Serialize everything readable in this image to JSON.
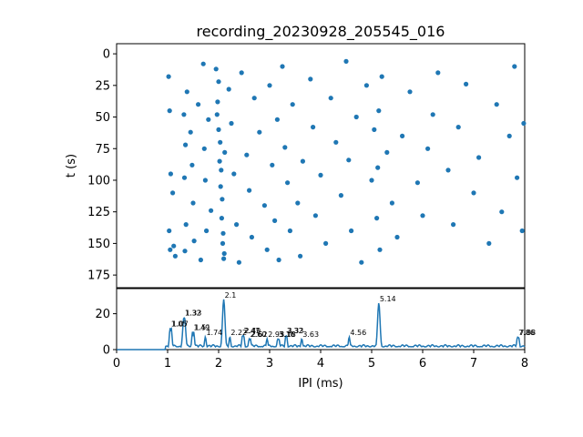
{
  "chart_data": [
    {
      "type": "scatter",
      "title": "recording_20230928_205545_016",
      "xlabel": "",
      "ylabel": "t (s)",
      "xlim": [
        0,
        8
      ],
      "ylim": [
        185,
        -8
      ],
      "y_inverted": true,
      "yticks": [
        0,
        25,
        50,
        75,
        100,
        125,
        150,
        175
      ],
      "grid": false,
      "color": "#1f77b4",
      "marker": "circle",
      "points": [
        [
          1.02,
          18
        ],
        [
          1.04,
          45
        ],
        [
          1.06,
          95
        ],
        [
          1.03,
          140
        ],
        [
          1.05,
          155
        ],
        [
          1.1,
          110
        ],
        [
          1.12,
          152
        ],
        [
          1.15,
          160
        ],
        [
          1.32,
          48
        ],
        [
          1.35,
          72
        ],
        [
          1.33,
          98
        ],
        [
          1.36,
          135
        ],
        [
          1.34,
          156
        ],
        [
          1.38,
          30
        ],
        [
          1.45,
          62
        ],
        [
          1.48,
          88
        ],
        [
          1.5,
          118
        ],
        [
          1.52,
          148
        ],
        [
          1.6,
          40
        ],
        [
          1.65,
          163
        ],
        [
          1.7,
          8
        ],
        [
          1.72,
          75
        ],
        [
          1.74,
          100
        ],
        [
          1.76,
          140
        ],
        [
          1.8,
          52
        ],
        [
          1.85,
          124
        ],
        [
          1.95,
          12
        ],
        [
          1.98,
          38
        ],
        [
          2.0,
          60
        ],
        [
          2.02,
          85
        ],
        [
          2.04,
          105
        ],
        [
          2.06,
          130
        ],
        [
          2.08,
          150
        ],
        [
          2.1,
          162
        ],
        [
          2.0,
          22
        ],
        [
          2.03,
          70
        ],
        [
          2.05,
          92
        ],
        [
          2.07,
          115
        ],
        [
          2.09,
          142
        ],
        [
          2.11,
          158
        ],
        [
          1.97,
          48
        ],
        [
          2.12,
          78
        ],
        [
          2.2,
          28
        ],
        [
          2.25,
          55
        ],
        [
          2.3,
          95
        ],
        [
          2.35,
          135
        ],
        [
          2.4,
          165
        ],
        [
          2.45,
          15
        ],
        [
          2.55,
          80
        ],
        [
          2.6,
          108
        ],
        [
          2.65,
          145
        ],
        [
          2.7,
          35
        ],
        [
          2.8,
          62
        ],
        [
          2.9,
          120
        ],
        [
          2.95,
          155
        ],
        [
          3.0,
          25
        ],
        [
          3.05,
          88
        ],
        [
          3.1,
          132
        ],
        [
          3.15,
          52
        ],
        [
          3.18,
          163
        ],
        [
          3.25,
          10
        ],
        [
          3.3,
          74
        ],
        [
          3.35,
          102
        ],
        [
          3.4,
          140
        ],
        [
          3.45,
          40
        ],
        [
          3.55,
          118
        ],
        [
          3.6,
          160
        ],
        [
          3.65,
          85
        ],
        [
          3.8,
          20
        ],
        [
          3.85,
          58
        ],
        [
          3.9,
          128
        ],
        [
          4.0,
          96
        ],
        [
          4.1,
          150
        ],
        [
          4.2,
          35
        ],
        [
          4.3,
          70
        ],
        [
          4.4,
          112
        ],
        [
          4.5,
          6
        ],
        [
          4.55,
          84
        ],
        [
          4.6,
          140
        ],
        [
          4.7,
          50
        ],
        [
          4.8,
          165
        ],
        [
          4.9,
          25
        ],
        [
          5.0,
          100
        ],
        [
          5.05,
          60
        ],
        [
          5.1,
          130
        ],
        [
          5.14,
          45
        ],
        [
          5.12,
          90
        ],
        [
          5.16,
          155
        ],
        [
          5.2,
          18
        ],
        [
          5.3,
          78
        ],
        [
          5.4,
          118
        ],
        [
          5.5,
          145
        ],
        [
          5.6,
          65
        ],
        [
          5.75,
          30
        ],
        [
          5.9,
          102
        ],
        [
          6.0,
          128
        ],
        [
          6.1,
          75
        ],
        [
          6.2,
          48
        ],
        [
          6.3,
          15
        ],
        [
          6.5,
          92
        ],
        [
          6.6,
          135
        ],
        [
          6.7,
          58
        ],
        [
          6.85,
          24
        ],
        [
          7.0,
          110
        ],
        [
          7.1,
          82
        ],
        [
          7.3,
          150
        ],
        [
          7.45,
          40
        ],
        [
          7.55,
          125
        ],
        [
          7.7,
          65
        ],
        [
          7.8,
          10
        ],
        [
          7.85,
          98
        ],
        [
          7.95,
          140
        ],
        [
          7.98,
          55
        ]
      ]
    },
    {
      "type": "line",
      "xlabel": "IPI (ms)",
      "ylabel": "",
      "xlim": [
        0,
        8
      ],
      "ylim": [
        0,
        34
      ],
      "xticks": [
        0,
        1,
        2,
        3,
        4,
        5,
        6,
        7,
        8
      ],
      "yticks": [
        0,
        20
      ],
      "grid": false,
      "color": "#1f77b4",
      "peaks": [
        {
          "x": 1.05,
          "y": 12,
          "label": "1.05"
        },
        {
          "x": 1.07,
          "y": 12,
          "label": "1.07"
        },
        {
          "x": 1.32,
          "y": 18,
          "label": "1.32"
        },
        {
          "x": 1.33,
          "y": 18,
          "label": "1.33"
        },
        {
          "x": 1.49,
          "y": 10,
          "label": "1.49"
        },
        {
          "x": 1.51,
          "y": 10,
          "label": "1.51"
        },
        {
          "x": 1.74,
          "y": 7,
          "label": "1.74"
        },
        {
          "x": 2.1,
          "y": 28,
          "label": "2.1"
        },
        {
          "x": 2.22,
          "y": 7,
          "label": "2.22"
        },
        {
          "x": 2.47,
          "y": 8,
          "label": "2.47"
        },
        {
          "x": 2.49,
          "y": 8,
          "label": "2.49"
        },
        {
          "x": 2.6,
          "y": 6,
          "label": "2.60"
        },
        {
          "x": 2.62,
          "y": 6,
          "label": "2.62"
        },
        {
          "x": 2.95,
          "y": 6,
          "label": "2.95"
        },
        {
          "x": 3.16,
          "y": 6,
          "label": "3.16"
        },
        {
          "x": 3.18,
          "y": 6,
          "label": "3.18"
        },
        {
          "x": 3.32,
          "y": 8,
          "label": "3.32"
        },
        {
          "x": 3.33,
          "y": 8,
          "label": "3.33"
        },
        {
          "x": 3.63,
          "y": 6,
          "label": "3.63"
        },
        {
          "x": 4.56,
          "y": 7,
          "label": "4.56"
        },
        {
          "x": 5.14,
          "y": 26,
          "label": "5.14"
        },
        {
          "x": 7.86,
          "y": 7,
          "label": "7.86"
        },
        {
          "x": 7.88,
          "y": 7,
          "label": "7.88"
        }
      ],
      "base_level": 1.5
    }
  ]
}
